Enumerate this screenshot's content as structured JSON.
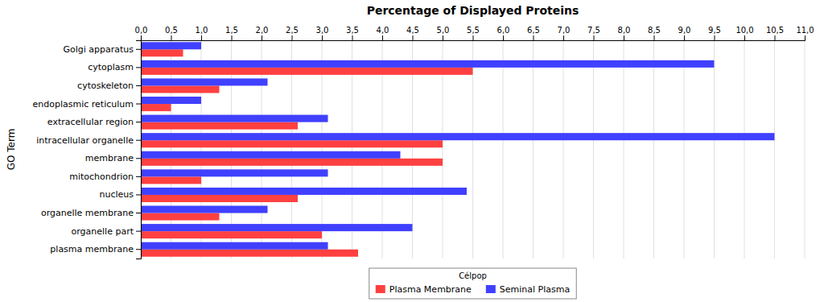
{
  "chart_data": {
    "type": "bar",
    "orientation": "horizontal",
    "title": "Percentage of Displayed Proteins",
    "y_label": "GO Term",
    "legend_title": "Célpop",
    "categories": [
      "Golgi apparatus",
      "cytoplasm",
      "cytoskeleton",
      "endoplasmic reticulum",
      "extracellular region",
      "intracellular organelle",
      "membrane",
      "mitochondrion",
      "nucleus",
      "organelle membrane",
      "organelle part",
      "plasma membrane"
    ],
    "series": [
      {
        "name": "Plasma Membrane",
        "color": "#FF4040",
        "values": [
          0.7,
          5.5,
          1.3,
          0.5,
          2.6,
          5.0,
          5.0,
          1.0,
          2.6,
          1.3,
          3.0,
          3.6
        ]
      },
      {
        "name": "Seminal Plasma",
        "color": "#4040FF",
        "values": [
          1.0,
          9.5,
          2.1,
          1.0,
          3.1,
          10.5,
          4.3,
          3.1,
          5.4,
          2.1,
          4.5,
          3.1
        ]
      }
    ],
    "xlim": [
      0,
      11.0
    ],
    "xticks": [
      {
        "value": 0.0,
        "label": "0,0"
      },
      {
        "value": 0.5,
        "label": "0,5"
      },
      {
        "value": 1.0,
        "label": "1,0"
      },
      {
        "value": 1.5,
        "label": "1,5"
      },
      {
        "value": 2.0,
        "label": "2,0"
      },
      {
        "value": 2.5,
        "label": "2,5"
      },
      {
        "value": 3.0,
        "label": "3,0"
      },
      {
        "value": 3.5,
        "label": "3,5"
      },
      {
        "value": 4.0,
        "label": "4,0"
      },
      {
        "value": 4.5,
        "label": "4,5"
      },
      {
        "value": 5.0,
        "label": "5,0"
      },
      {
        "value": 5.5,
        "label": "5,5"
      },
      {
        "value": 6.0,
        "label": "6,0"
      },
      {
        "value": 6.5,
        "label": "6,5"
      },
      {
        "value": 7.0,
        "label": "7,0"
      },
      {
        "value": 7.5,
        "label": "7,5"
      },
      {
        "value": 8.0,
        "label": "8,0"
      },
      {
        "value": 8.5,
        "label": "8,5"
      },
      {
        "value": 9.0,
        "label": "9,0"
      },
      {
        "value": 9.5,
        "label": "9,5"
      },
      {
        "value": 10.0,
        "label": "10,0"
      },
      {
        "value": 10.5,
        "label": "10,5"
      },
      {
        "value": 11.0,
        "label": "11,0"
      }
    ],
    "grid": true,
    "legend": "bottom"
  }
}
